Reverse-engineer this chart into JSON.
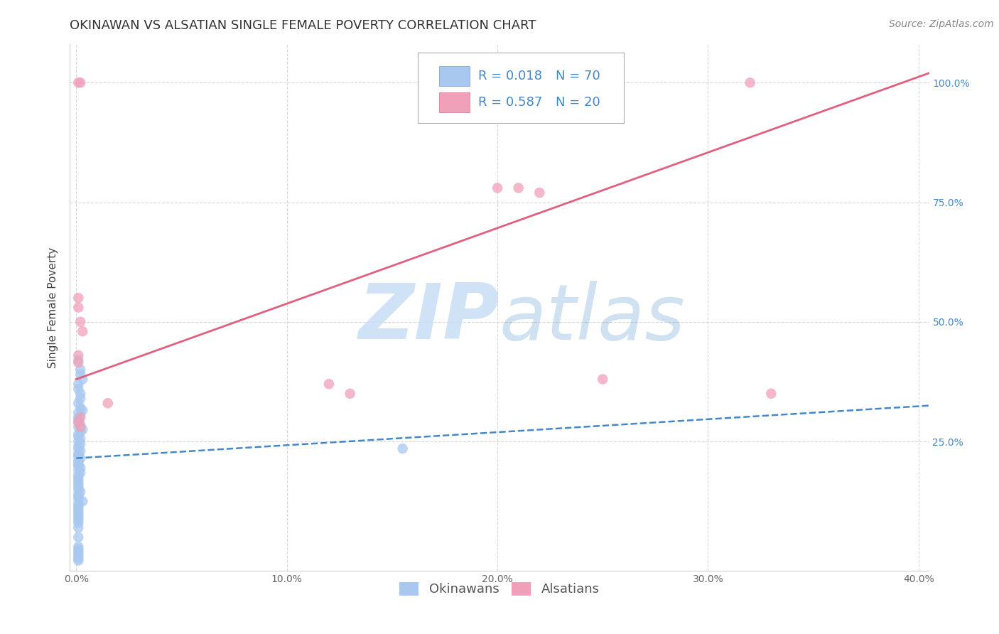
{
  "title": "OKINAWAN VS ALSATIAN SINGLE FEMALE POVERTY CORRELATION CHART",
  "source_text": "Source: ZipAtlas.com",
  "ylabel": "Single Female Poverty",
  "xlim": [
    -0.003,
    0.405
  ],
  "ylim": [
    -0.02,
    1.08
  ],
  "xtick_vals": [
    0.0,
    0.1,
    0.2,
    0.3,
    0.4
  ],
  "xtick_labels": [
    "0.0%",
    "10.0%",
    "20.0%",
    "30.0%",
    "40.0%"
  ],
  "ytick_vals": [
    0.25,
    0.5,
    0.75,
    1.0
  ],
  "ytick_labels": [
    "25.0%",
    "50.0%",
    "75.0%",
    "100.0%"
  ],
  "blue_color": "#a8c8f0",
  "pink_color": "#f0a0b8",
  "blue_line_color": "#4488cc",
  "pink_line_color": "#e06080",
  "grid_color": "#d8d8d8",
  "title_color": "#333333",
  "source_color": "#888888",
  "tick_color": "#4488cc",
  "legend_r_blue": "R = 0.018",
  "legend_n_blue": "N = 70",
  "legend_r_pink": "R = 0.587",
  "legend_n_pink": "N = 20",
  "legend_label_blue": "Okinawans",
  "legend_label_pink": "Alsatians",
  "watermark_zip_light": "#c8dff5",
  "watermark_atlas_blue": "#4488cc",
  "background_color": "#ffffff",
  "blue_x": [
    0.001,
    0.002,
    0.002,
    0.003,
    0.001,
    0.001,
    0.002,
    0.002,
    0.001,
    0.002,
    0.003,
    0.001,
    0.002,
    0.001,
    0.001,
    0.001,
    0.002,
    0.001,
    0.003,
    0.002,
    0.001,
    0.001,
    0.002,
    0.001,
    0.002,
    0.001,
    0.001,
    0.002,
    0.001,
    0.001,
    0.001,
    0.002,
    0.001,
    0.001,
    0.001,
    0.001,
    0.002,
    0.001,
    0.002,
    0.001,
    0.001,
    0.001,
    0.001,
    0.001,
    0.001,
    0.001,
    0.002,
    0.001,
    0.001,
    0.001,
    0.003,
    0.001,
    0.001,
    0.001,
    0.001,
    0.001,
    0.001,
    0.001,
    0.001,
    0.001,
    0.001,
    0.001,
    0.001,
    0.155,
    0.001,
    0.001,
    0.001,
    0.001,
    0.001,
    0.001
  ],
  "blue_y": [
    0.42,
    0.4,
    0.39,
    0.38,
    0.37,
    0.36,
    0.35,
    0.34,
    0.33,
    0.32,
    0.315,
    0.31,
    0.305,
    0.3,
    0.295,
    0.29,
    0.285,
    0.28,
    0.275,
    0.27,
    0.265,
    0.26,
    0.255,
    0.25,
    0.245,
    0.24,
    0.235,
    0.23,
    0.225,
    0.22,
    0.22,
    0.215,
    0.21,
    0.205,
    0.2,
    0.2,
    0.195,
    0.19,
    0.185,
    0.18,
    0.175,
    0.17,
    0.165,
    0.16,
    0.155,
    0.15,
    0.145,
    0.14,
    0.135,
    0.13,
    0.125,
    0.12,
    0.115,
    0.11,
    0.105,
    0.1,
    0.095,
    0.09,
    0.085,
    0.08,
    0.07,
    0.05,
    0.02,
    0.235,
    0.03,
    0.025,
    0.015,
    0.01,
    0.005,
    0.001
  ],
  "pink_x": [
    0.001,
    0.002,
    0.001,
    0.001,
    0.002,
    0.003,
    0.001,
    0.001,
    0.12,
    0.13,
    0.2,
    0.21,
    0.22,
    0.32,
    0.015,
    0.002,
    0.001,
    0.002,
    0.25,
    0.33
  ],
  "pink_y": [
    1.0,
    1.0,
    0.55,
    0.53,
    0.5,
    0.48,
    0.43,
    0.415,
    0.37,
    0.35,
    0.78,
    0.78,
    0.77,
    1.0,
    0.33,
    0.3,
    0.29,
    0.28,
    0.38,
    0.35
  ],
  "blue_trend_x": [
    0.0,
    0.405
  ],
  "blue_trend_y": [
    0.215,
    0.325
  ],
  "pink_trend_x": [
    0.0,
    0.405
  ],
  "pink_trend_y": [
    0.38,
    1.02
  ],
  "title_fontsize": 13,
  "axis_label_fontsize": 11,
  "tick_fontsize": 10,
  "legend_fontsize": 13,
  "source_fontsize": 10
}
